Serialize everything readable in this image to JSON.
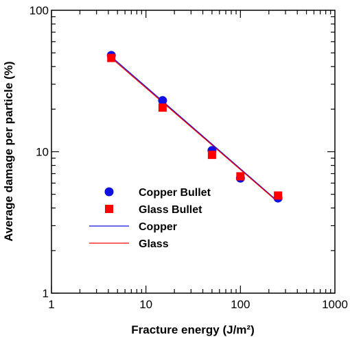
{
  "chart_data": {
    "type": "scatter",
    "x_scale": "log",
    "y_scale": "log",
    "xlim": [
      1,
      1000
    ],
    "ylim": [
      1,
      100
    ],
    "xlabel": "Fracture energy (J/m²)",
    "ylabel": "Average damage per particle (%)",
    "x_tick_labels": [
      "1",
      "10",
      "100",
      "1000"
    ],
    "y_tick_labels": [
      "1",
      "10",
      "100"
    ],
    "grid": false,
    "legend_position": "lower-left",
    "series": [
      {
        "name": "Copper Bullet",
        "kind": "points",
        "marker": "circle",
        "color": "#1010e0",
        "x": [
          4.3,
          15,
          50,
          100,
          250
        ],
        "y": [
          48,
          23,
          10.2,
          6.5,
          4.7
        ]
      },
      {
        "name": "Glass Bullet",
        "kind": "points",
        "marker": "square",
        "color": "#ff0000",
        "x": [
          4.3,
          15,
          50,
          100,
          250
        ],
        "y": [
          46,
          20.5,
          9.5,
          6.7,
          4.9
        ]
      },
      {
        "name": "Copper",
        "kind": "line",
        "color": "#1010e0",
        "x": [
          4.3,
          250
        ],
        "y": [
          47,
          4.45
        ]
      },
      {
        "name": "Glass",
        "kind": "line",
        "color": "#ff0000",
        "x": [
          4.3,
          250
        ],
        "y": [
          46,
          4.4
        ]
      }
    ]
  }
}
